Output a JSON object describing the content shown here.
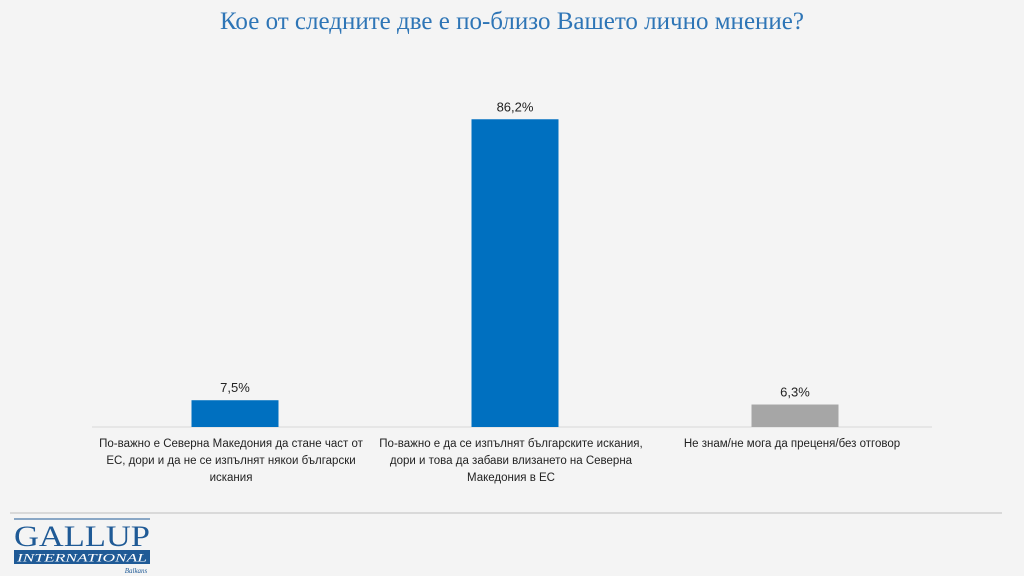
{
  "chart_data": {
    "type": "bar",
    "title": "Кое от следните две е по-близо Вашето лично мнение?",
    "categories": [
      "По-важно е Северна Македония да стане част от ЕС, дори и да не се изпълнят някои български искания",
      "По-важно е да се изпълнят българските искания, дори и това да забави влизането на Северна Македония в ЕС",
      "Не знам/не мога да преценя/без отговор"
    ],
    "values": [
      7.5,
      86.2,
      6.3
    ],
    "data_labels": [
      "7,5%",
      "86,2%",
      "6,3%"
    ],
    "colors": [
      "#0070c0",
      "#0070c0",
      "#a6a6a6"
    ],
    "ylim": [
      0,
      100
    ],
    "grid": false,
    "legend": "none"
  },
  "logo": {
    "line1": "GALLUP",
    "line2": "INTERNATIONAL",
    "line3": "Balkans",
    "color": "#1f5a96"
  }
}
